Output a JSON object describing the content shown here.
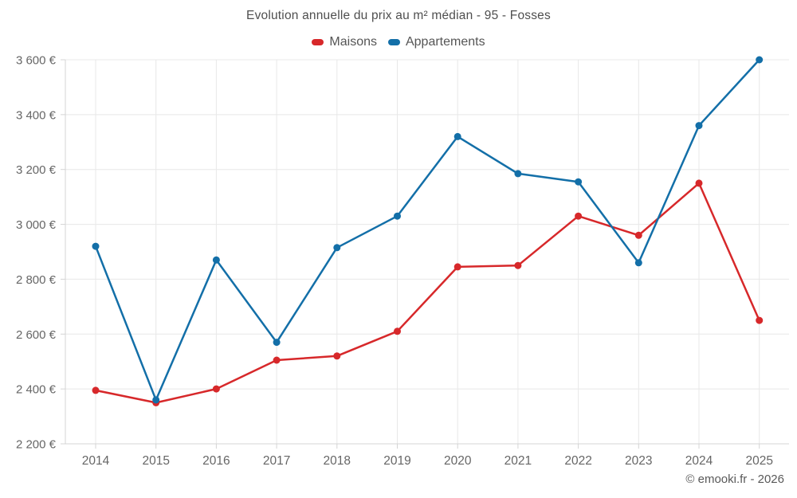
{
  "title": "Evolution annuelle du prix au m² médian - 95 - Fosses",
  "footer": "© emooki.fr - 2026",
  "legend": {
    "items": [
      {
        "label": "Maisons",
        "color": "#d7282a"
      },
      {
        "label": "Appartements",
        "color": "#136fa8"
      }
    ]
  },
  "colors": {
    "maisons": "#d7282a",
    "appartements": "#136fa8",
    "grid": "#e8e8e8",
    "axis": "#d4d4d4",
    "tick_text": "#666666"
  },
  "chart_data": {
    "type": "line",
    "title": "Evolution annuelle du prix au m² médian - 95 - Fosses",
    "x": [
      "2014",
      "2015",
      "2016",
      "2017",
      "2018",
      "2019",
      "2020",
      "2021",
      "2022",
      "2023",
      "2024",
      "2025"
    ],
    "series": [
      {
        "name": "Maisons",
        "color": "#d7282a",
        "values": [
          2395,
          2350,
          2400,
          2505,
          2520,
          2610,
          2845,
          2850,
          3030,
          2960,
          3150,
          2650
        ]
      },
      {
        "name": "Appartements",
        "color": "#136fa8",
        "values": [
          2920,
          2360,
          2870,
          2570,
          2915,
          3030,
          3320,
          3185,
          3155,
          2860,
          3360,
          3600
        ]
      }
    ],
    "xlabel": "",
    "ylabel": "",
    "ylim": [
      2200,
      3600
    ],
    "yticks": [
      2200,
      2400,
      2600,
      2800,
      3000,
      3200,
      3400,
      3600
    ],
    "ytick_labels": [
      "2 200 €",
      "2 400 €",
      "2 600 €",
      "2 800 €",
      "3 000 €",
      "3 200 €",
      "3 400 €",
      "3 600 €"
    ],
    "grid": true,
    "legend_position": "top"
  }
}
